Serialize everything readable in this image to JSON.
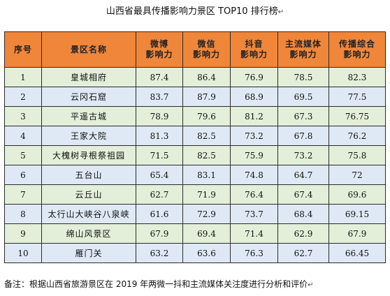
{
  "title": "山西省最具传播影响力景区 TOP10 排行榜",
  "table": {
    "headers": [
      [
        "序号"
      ],
      [
        "景区名称"
      ],
      [
        "微博",
        "影响力"
      ],
      [
        "微信",
        "影响力"
      ],
      [
        "抖音",
        "影响力"
      ],
      [
        "主流媒体",
        "影响力"
      ],
      [
        "传播综合",
        "影响力"
      ]
    ],
    "rows": [
      [
        "1",
        "皇城相府",
        "87.4",
        "86.4",
        "76.9",
        "78.5",
        "82.3"
      ],
      [
        "2",
        "云冈石窟",
        "83.7",
        "87.9",
        "68.9",
        "69.5",
        "77.5"
      ],
      [
        "3",
        "平遥古城",
        "78.9",
        "79.6",
        "81.2",
        "67.3",
        "76.75"
      ],
      [
        "4",
        "王家大院",
        "81.3",
        "82.5",
        "73.2",
        "67.8",
        "76.2"
      ],
      [
        "5",
        "大槐树寻根祭祖园",
        "71.5",
        "82.5",
        "75.9",
        "73.2",
        "75.8"
      ],
      [
        "6",
        "五台山",
        "65.4",
        "83.1",
        "74.8",
        "64.7",
        "72"
      ],
      [
        "7",
        "云丘山",
        "62.7",
        "71.9",
        "76.4",
        "67.4",
        "69.6"
      ],
      [
        "8",
        "太行山大峡谷八泉峡",
        "61.6",
        "72.9",
        "73.7",
        "68.4",
        "69.15"
      ],
      [
        "9",
        "绵山风景区",
        "67.9",
        "69.4",
        "71.4",
        "62.9",
        "67.9"
      ],
      [
        "10",
        "雁门关",
        "63.2",
        "63.6",
        "76.3",
        "62.7",
        "66.45"
      ]
    ]
  },
  "note": "备注：根据山西省旅游景区在 2019 年两微一抖和主流媒体关注度进行分析和评价",
  "paragraph_mark": "↵",
  "colors": {
    "header_bg": "#f0863a",
    "row_odd_bg": "#e3efd9",
    "row_even_bg": "#dfe9f5",
    "border": "#2b2b2b"
  }
}
